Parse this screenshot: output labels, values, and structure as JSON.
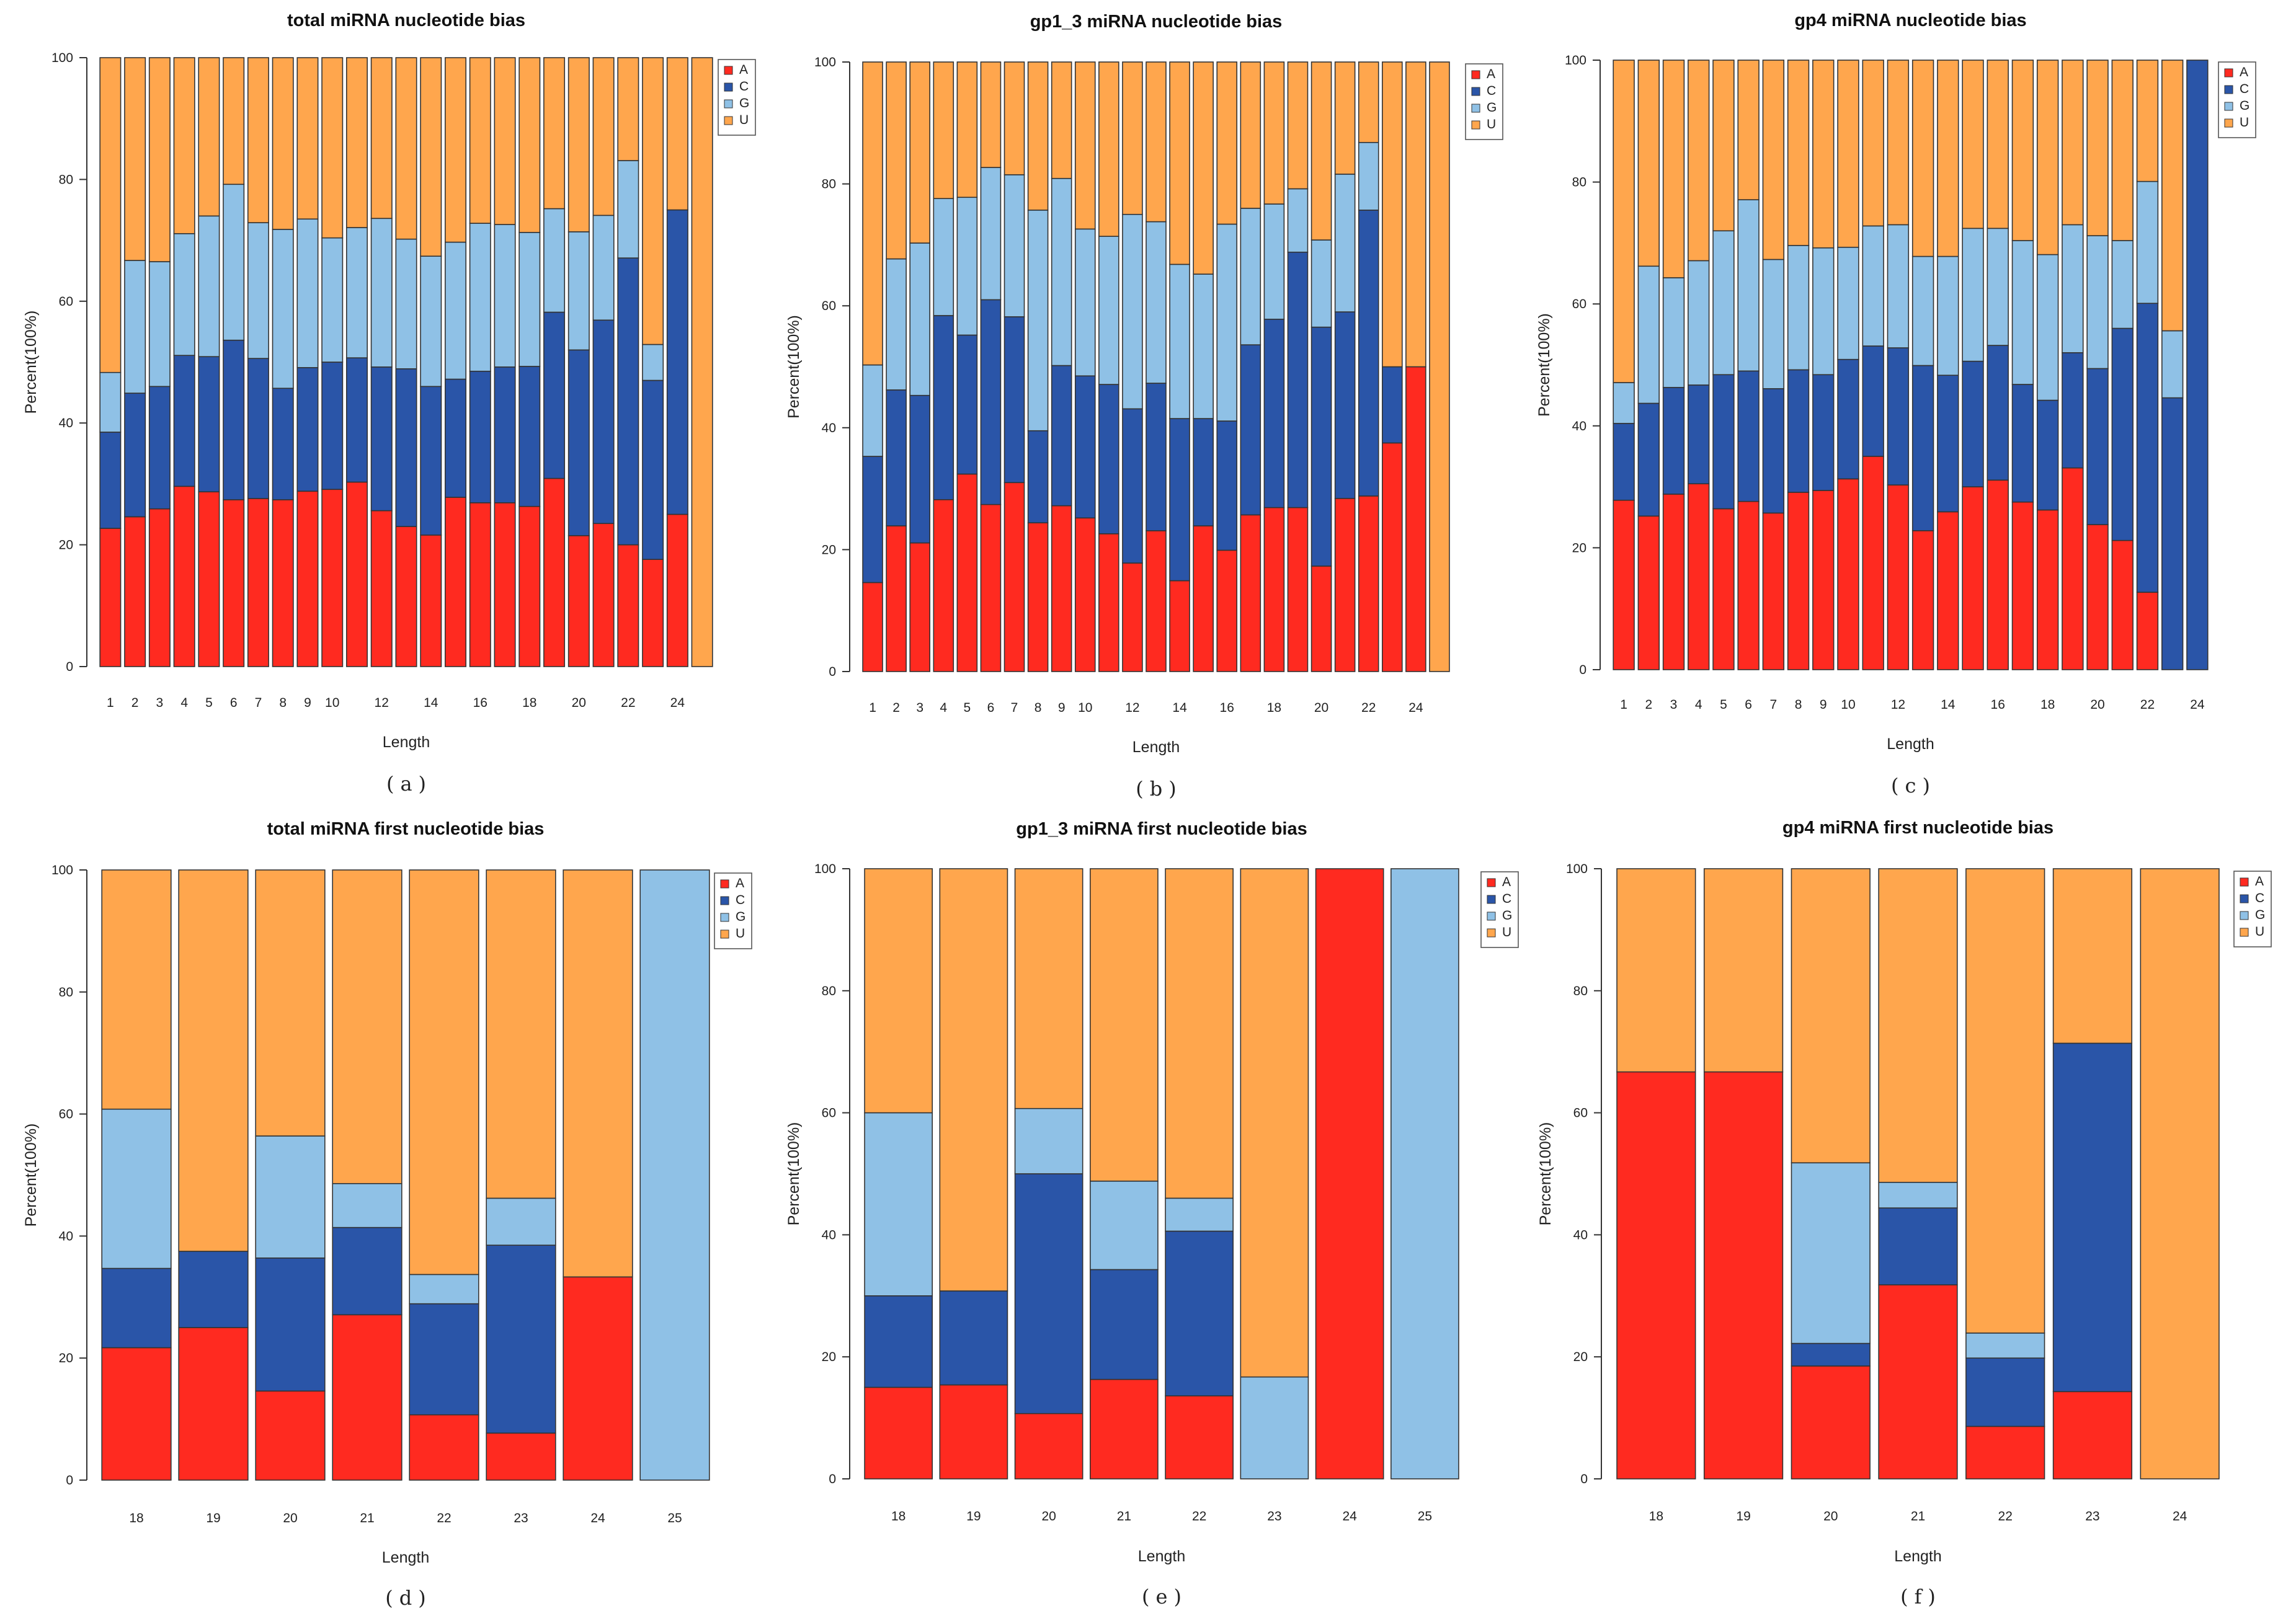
{
  "colors": {
    "A": "#ff2a20",
    "C": "#2a55a8",
    "G": "#8fc1e6",
    "U": "#ffa64d"
  },
  "legend_labels": [
    "A",
    "C",
    "G",
    "U"
  ],
  "ylabel": "Percent(100%)",
  "xlabel": "Length",
  "yticks": [
    0,
    20,
    40,
    60,
    80,
    100
  ],
  "chart_data": [
    {
      "type": "bar",
      "stacked": true,
      "title": "total miRNA nucleotide bias",
      "caption": "(a)",
      "xlabel": "Length",
      "ylabel": "Percent(100%)",
      "ylim": [
        0,
        100
      ],
      "categories": [
        "1",
        "2",
        "3",
        "4",
        "5",
        "6",
        "7",
        "8",
        "9",
        "10",
        "11",
        "12",
        "13",
        "14",
        "15",
        "16",
        "17",
        "18",
        "19",
        "20",
        "21",
        "22",
        "23",
        "24",
        "25"
      ],
      "tick_labels": [
        "1",
        "2",
        "3",
        "4",
        "5",
        "6",
        "7",
        "8",
        "9",
        "10",
        "12",
        "14",
        "16",
        "18",
        "20",
        "22",
        "24"
      ],
      "series": [
        {
          "name": "A",
          "values": [
            22.7,
            24.6,
            25.9,
            29.6,
            28.7,
            27.4,
            27.6,
            27.4,
            28.8,
            29.1,
            30.3,
            25.6,
            23.0,
            21.6,
            27.8,
            26.9,
            26.9,
            26.3,
            30.9,
            21.5,
            23.5,
            20.0,
            17.6,
            25.0,
            0
          ]
        },
        {
          "name": "C",
          "values": [
            15.8,
            20.3,
            20.1,
            21.5,
            22.2,
            26.2,
            23.0,
            18.3,
            20.3,
            20.9,
            20.4,
            23.6,
            25.9,
            24.4,
            19.4,
            21.6,
            22.3,
            23.0,
            27.3,
            30.5,
            33.4,
            47.1,
            29.4,
            50.0,
            0
          ]
        },
        {
          "name": "G",
          "values": [
            9.8,
            21.8,
            20.5,
            20.0,
            23.1,
            25.6,
            22.3,
            26.1,
            24.4,
            20.4,
            21.4,
            24.4,
            21.3,
            21.4,
            22.5,
            24.3,
            23.4,
            22.0,
            17.0,
            19.4,
            17.2,
            16.0,
            5.9,
            0,
            0
          ]
        },
        {
          "name": "U",
          "values": [
            51.7,
            33.3,
            33.5,
            28.9,
            26.0,
            20.8,
            27.1,
            28.2,
            26.5,
            29.6,
            27.9,
            26.4,
            29.8,
            32.6,
            30.3,
            27.2,
            27.4,
            28.7,
            24.8,
            28.6,
            25.9,
            16.9,
            47.1,
            25.0,
            100
          ]
        }
      ]
    },
    {
      "type": "bar",
      "stacked": true,
      "title": "gp1_3 miRNA nucleotide bias",
      "caption": "(b)",
      "xlabel": "Length",
      "ylabel": "Percent(100%)",
      "ylim": [
        0,
        100
      ],
      "categories": [
        "1",
        "2",
        "3",
        "4",
        "5",
        "6",
        "7",
        "8",
        "9",
        "10",
        "11",
        "12",
        "13",
        "14",
        "15",
        "16",
        "17",
        "18",
        "19",
        "20",
        "21",
        "22",
        "23",
        "24",
        "25"
      ],
      "tick_labels": [
        "1",
        "2",
        "3",
        "4",
        "5",
        "6",
        "7",
        "8",
        "9",
        "10",
        "12",
        "14",
        "16",
        "18",
        "20",
        "22",
        "24"
      ],
      "series": [
        {
          "name": "A",
          "values": [
            14.6,
            23.9,
            21.1,
            28.2,
            32.4,
            27.4,
            31.0,
            24.4,
            27.2,
            25.2,
            22.6,
            17.8,
            23.1,
            14.9,
            23.9,
            19.9,
            25.7,
            26.9,
            26.9,
            17.3,
            28.4,
            28.8,
            37.5,
            50.0,
            0
          ]
        },
        {
          "name": "C",
          "values": [
            20.7,
            22.3,
            24.2,
            30.2,
            22.8,
            33.6,
            27.2,
            15.1,
            23.0,
            23.3,
            24.5,
            25.3,
            24.2,
            26.6,
            17.6,
            21.2,
            27.9,
            30.9,
            41.9,
            39.2,
            30.6,
            46.9,
            12.5,
            0,
            0
          ]
        },
        {
          "name": "G",
          "values": [
            15.0,
            21.5,
            25.0,
            19.2,
            22.6,
            21.7,
            23.3,
            36.2,
            30.7,
            24.1,
            24.3,
            31.9,
            26.5,
            25.3,
            23.7,
            32.3,
            22.4,
            18.9,
            10.4,
            14.3,
            22.6,
            11.1,
            0,
            0,
            0
          ]
        },
        {
          "name": "U",
          "values": [
            49.7,
            32.3,
            29.7,
            22.4,
            22.2,
            17.3,
            18.5,
            24.3,
            19.1,
            27.4,
            28.6,
            25.0,
            26.2,
            33.2,
            34.8,
            26.6,
            24.0,
            23.3,
            20.8,
            29.2,
            18.4,
            13.2,
            50.0,
            50.0,
            100
          ]
        }
      ]
    },
    {
      "type": "bar",
      "stacked": true,
      "title": "gp4 miRNA nucleotide bias",
      "caption": "(c)",
      "xlabel": "Length",
      "ylabel": "Percent(100%)",
      "ylim": [
        0,
        100
      ],
      "categories": [
        "1",
        "2",
        "3",
        "4",
        "5",
        "6",
        "7",
        "8",
        "9",
        "10",
        "11",
        "12",
        "13",
        "14",
        "15",
        "16",
        "17",
        "18",
        "19",
        "20",
        "21",
        "22",
        "23",
        "24"
      ],
      "tick_labels": [
        "1",
        "2",
        "3",
        "4",
        "5",
        "6",
        "7",
        "8",
        "9",
        "10",
        "12",
        "14",
        "16",
        "18",
        "20",
        "22",
        "24"
      ],
      "series": [
        {
          "name": "A",
          "values": [
            27.8,
            25.2,
            28.8,
            30.5,
            26.4,
            27.6,
            25.7,
            29.1,
            29.4,
            31.3,
            35.0,
            30.3,
            22.8,
            25.9,
            30.0,
            31.1,
            27.5,
            26.2,
            33.1,
            23.8,
            21.2,
            12.7,
            0,
            0
          ]
        },
        {
          "name": "C",
          "values": [
            12.6,
            18.5,
            17.5,
            16.2,
            22.0,
            21.4,
            20.4,
            20.1,
            19.0,
            19.6,
            18.1,
            22.5,
            27.1,
            22.4,
            20.6,
            22.1,
            19.3,
            18.0,
            18.9,
            25.6,
            34.8,
            47.4,
            44.6,
            100
          ]
        },
        {
          "name": "G",
          "values": [
            6.7,
            22.5,
            18.0,
            20.4,
            23.6,
            28.1,
            21.2,
            20.4,
            20.8,
            18.4,
            19.7,
            20.2,
            17.9,
            19.5,
            21.8,
            19.2,
            23.6,
            23.9,
            21.0,
            21.8,
            14.4,
            20.0,
            11.0,
            0
          ]
        },
        {
          "name": "U",
          "values": [
            52.9,
            33.8,
            35.7,
            32.9,
            28.0,
            22.9,
            32.7,
            30.4,
            30.8,
            30.7,
            27.2,
            27.0,
            32.2,
            32.2,
            27.6,
            27.6,
            29.6,
            31.9,
            27.0,
            28.8,
            29.6,
            19.9,
            44.4,
            0
          ]
        }
      ]
    },
    {
      "type": "bar",
      "stacked": true,
      "title": "total miRNA first nucleotide bias",
      "caption": "(d)",
      "xlabel": "Length",
      "ylabel": "Percent(100%)",
      "ylim": [
        0,
        100
      ],
      "categories": [
        "18",
        "19",
        "20",
        "21",
        "22",
        "23",
        "24",
        "25"
      ],
      "tick_labels": [
        "18",
        "19",
        "20",
        "21",
        "22",
        "23",
        "24",
        "25"
      ],
      "series": [
        {
          "name": "A",
          "values": [
            21.7,
            25.0,
            14.6,
            27.1,
            10.7,
            7.7,
            33.3,
            0
          ]
        },
        {
          "name": "C",
          "values": [
            13.0,
            12.5,
            21.8,
            14.3,
            18.2,
            30.8,
            0,
            0
          ]
        },
        {
          "name": "G",
          "values": [
            26.1,
            0,
            20.0,
            7.2,
            4.8,
            7.7,
            0,
            100
          ]
        },
        {
          "name": "U",
          "values": [
            39.2,
            62.5,
            43.6,
            51.4,
            66.3,
            53.8,
            66.7,
            0
          ]
        }
      ]
    },
    {
      "type": "bar",
      "stacked": true,
      "title": "gp1_3 miRNA first nucleotide bias",
      "caption": "(e)",
      "xlabel": "Length",
      "ylabel": "Percent(100%)",
      "ylim": [
        0,
        100
      ],
      "categories": [
        "18",
        "19",
        "20",
        "21",
        "22",
        "23",
        "24",
        "25"
      ],
      "tick_labels": [
        "18",
        "19",
        "20",
        "21",
        "22",
        "23",
        "24",
        "25"
      ],
      "series": [
        {
          "name": "A",
          "values": [
            15.0,
            15.4,
            10.7,
            16.3,
            13.6,
            0,
            100,
            0
          ]
        },
        {
          "name": "C",
          "values": [
            15.0,
            15.4,
            39.3,
            18.0,
            27.0,
            0,
            0,
            0
          ]
        },
        {
          "name": "G",
          "values": [
            30.0,
            0,
            10.7,
            14.5,
            5.4,
            16.7,
            0,
            100
          ]
        },
        {
          "name": "U",
          "values": [
            40.0,
            69.2,
            39.3,
            51.2,
            54.0,
            83.3,
            0,
            0
          ]
        }
      ]
    },
    {
      "type": "bar",
      "stacked": true,
      "title": "gp4 miRNA first nucleotide bias",
      "caption": "(f)",
      "xlabel": "Length",
      "ylabel": "Percent(100%)",
      "ylim": [
        0,
        100
      ],
      "categories": [
        "18",
        "19",
        "20",
        "21",
        "22",
        "23",
        "24"
      ],
      "tick_labels": [
        "18",
        "19",
        "20",
        "21",
        "22",
        "23",
        "24"
      ],
      "series": [
        {
          "name": "A",
          "values": [
            66.7,
            66.7,
            18.5,
            31.8,
            8.6,
            14.3,
            0
          ]
        },
        {
          "name": "C",
          "values": [
            0,
            0,
            3.7,
            12.6,
            11.2,
            57.1,
            0
          ]
        },
        {
          "name": "G",
          "values": [
            0,
            0,
            29.6,
            4.2,
            4.1,
            0,
            0
          ]
        },
        {
          "name": "U",
          "values": [
            33.3,
            33.3,
            48.2,
            51.4,
            76.1,
            28.6,
            100
          ]
        }
      ]
    }
  ]
}
